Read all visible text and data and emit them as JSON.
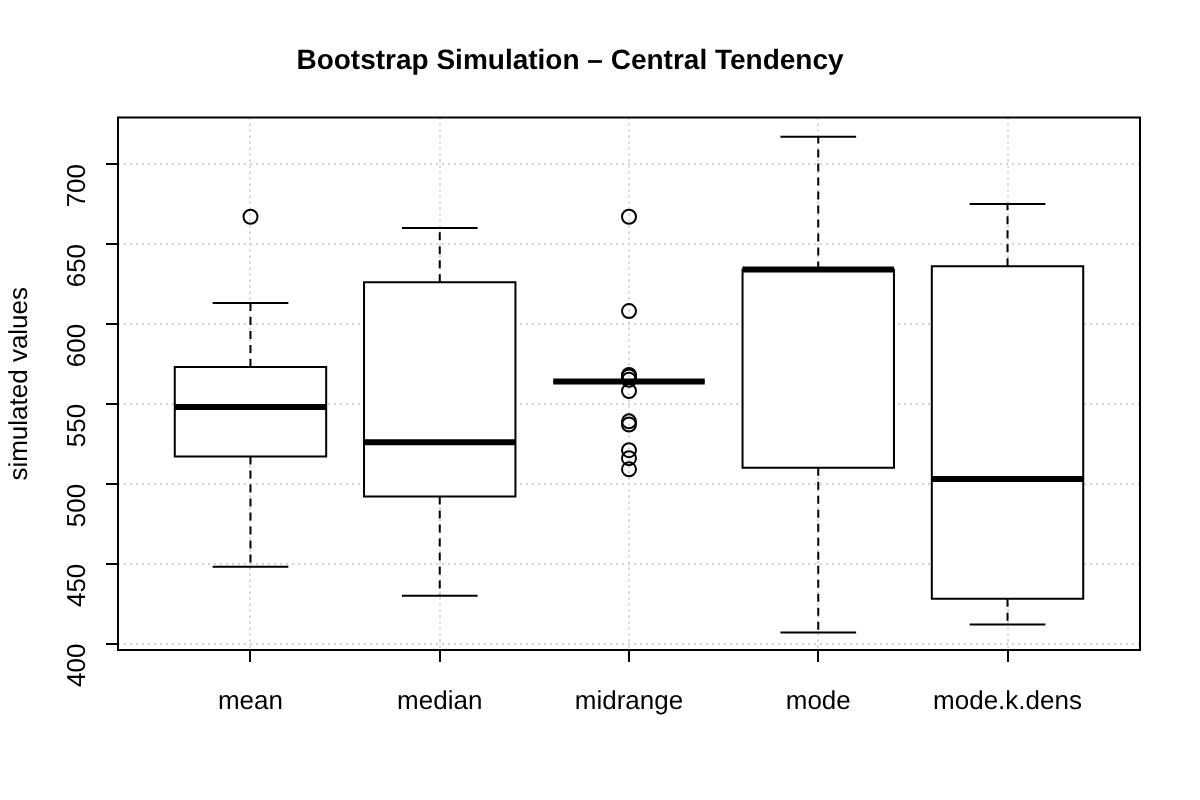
{
  "chart_data": {
    "type": "box",
    "title": "Bootstrap Simulation – Central Tendency",
    "ylabel": "simulated values",
    "categories": [
      "mean",
      "median",
      "midrange",
      "mode",
      "mode.k.dens"
    ],
    "boxes": [
      {
        "low": 448,
        "q1": 517,
        "median": 548,
        "q3": 573,
        "high": 613,
        "outliers": [
          667
        ]
      },
      {
        "low": 430,
        "q1": 492,
        "median": 526,
        "q3": 626,
        "high": 660
      },
      {
        "low": 564,
        "q1": 564,
        "median": 564,
        "q3": 564,
        "high": 564,
        "outliers": [
          667,
          608,
          568,
          567,
          565,
          558,
          539,
          537,
          521,
          516,
          509
        ]
      },
      {
        "low": 407,
        "q1": 510,
        "median": 634,
        "q3": 634,
        "high": 717
      },
      {
        "low": 412,
        "q1": 428,
        "median": 503,
        "q3": 636,
        "high": 675
      }
    ],
    "ylim": [
      396,
      729
    ],
    "yticks": [
      400,
      450,
      500,
      550,
      600,
      650,
      700
    ],
    "grid": true
  }
}
